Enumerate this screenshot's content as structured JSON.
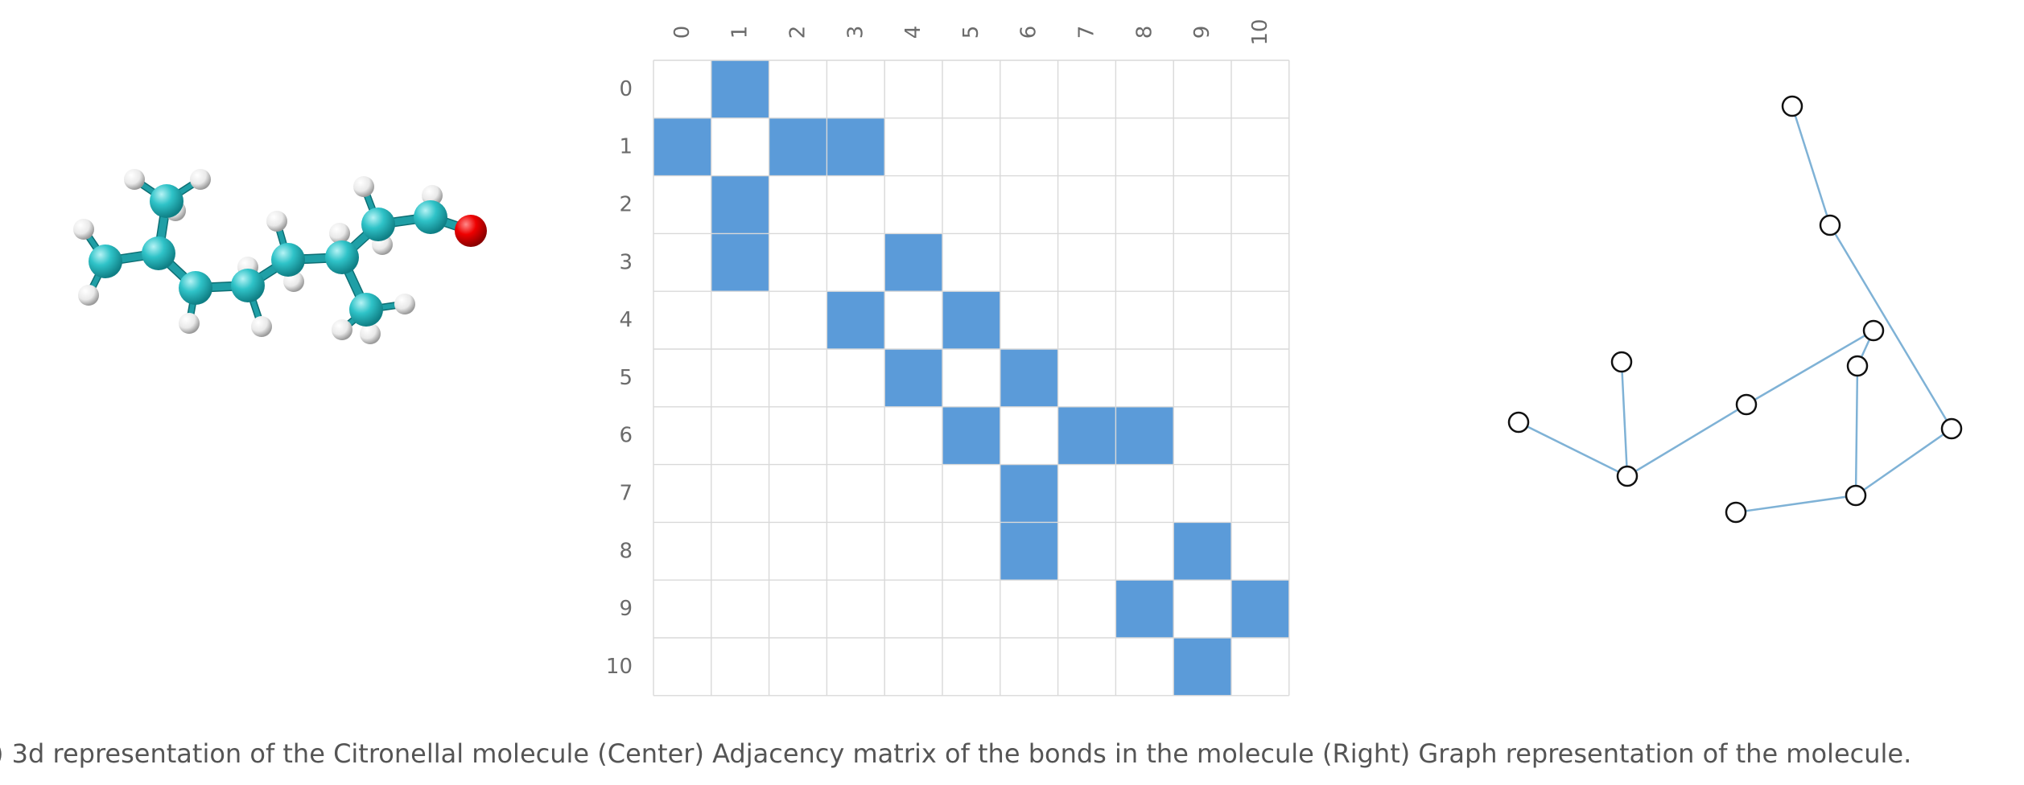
{
  "caption": ") 3d representation of the Citronellal molecule (Center) Adjacency matrix of the bonds in the molecule (Right) Graph representation of the molecule.",
  "colors": {
    "matrix_fill": "#5b9bd9",
    "grid_line": "#d9d9d9",
    "carbon": "#2ebfc4",
    "hydrogen": "#f2f2f2",
    "oxygen": "#e00000",
    "bond": "#1f9fa6",
    "graph_edge": "#7fb2d6",
    "graph_node_stroke": "#111111"
  },
  "matrix": {
    "labels": [
      "0",
      "1",
      "2",
      "3",
      "4",
      "5",
      "6",
      "7",
      "8",
      "9",
      "10"
    ],
    "bonds": [
      [
        0,
        1
      ],
      [
        1,
        2
      ],
      [
        1,
        3
      ],
      [
        3,
        4
      ],
      [
        4,
        5
      ],
      [
        5,
        6
      ],
      [
        6,
        7
      ],
      [
        6,
        8
      ],
      [
        8,
        9
      ],
      [
        9,
        10
      ]
    ]
  }
}
